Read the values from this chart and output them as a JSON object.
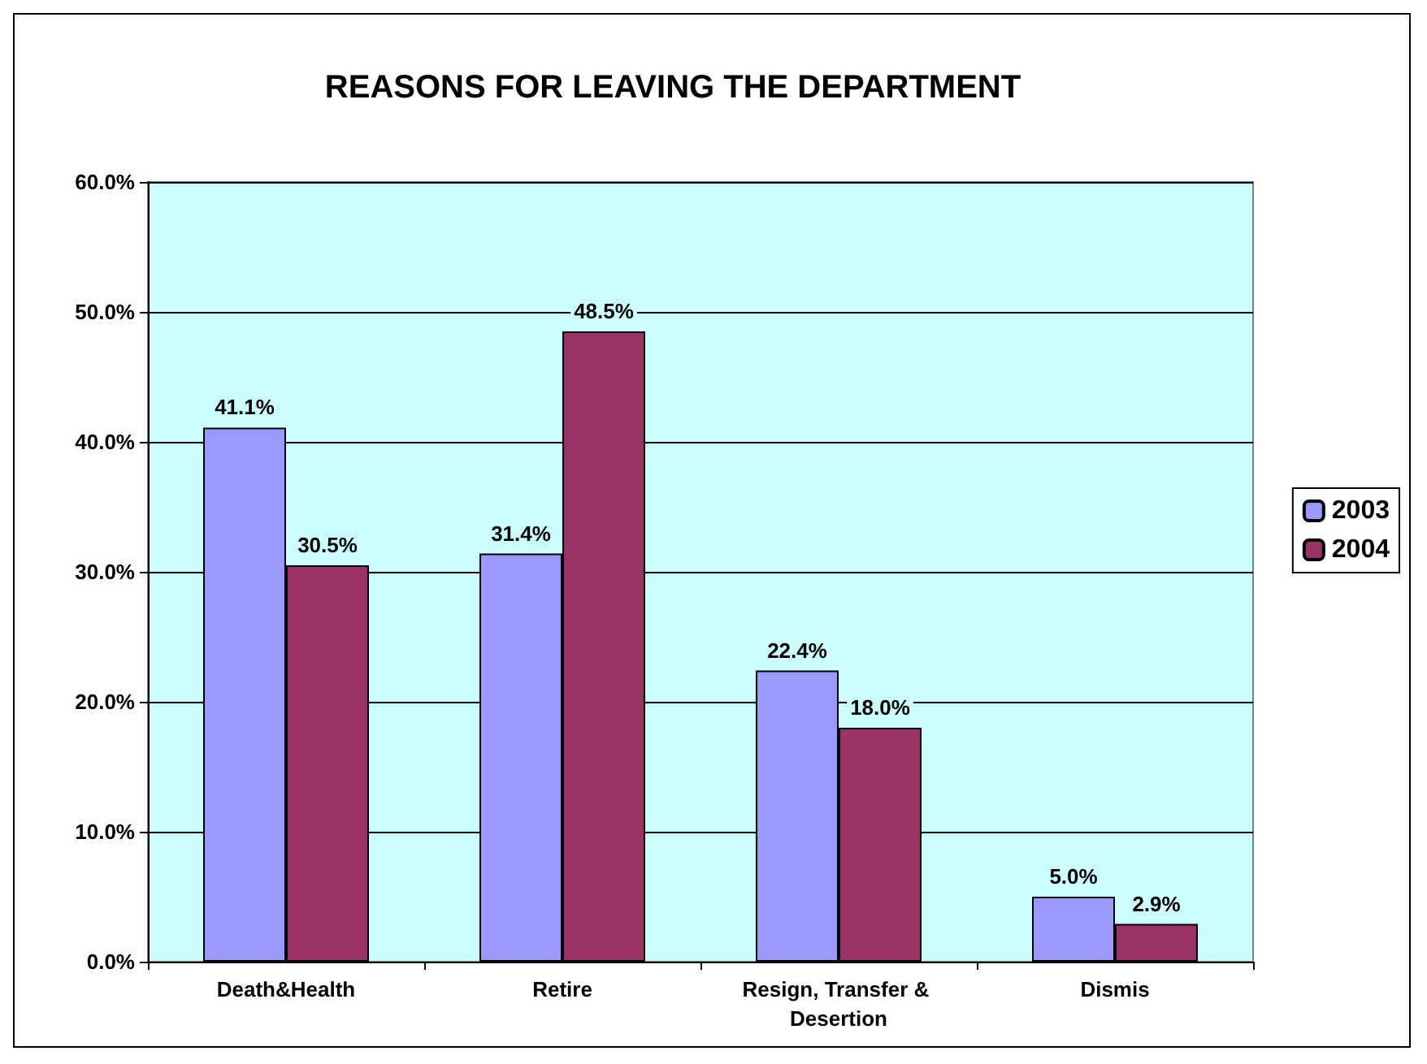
{
  "chart_data": {
    "type": "bar",
    "title": "REASONS FOR LEAVING THE DEPARTMENT",
    "categories": [
      "Death&Health",
      "Retire",
      "Resign, Transfer & Desertion",
      "Dismis"
    ],
    "series": [
      {
        "name": "2003",
        "color": "#9999ff",
        "values": [
          41.1,
          31.4,
          22.4,
          5.0
        ],
        "value_labels": [
          "41.1%",
          "31.4%",
          "22.4%",
          "5.0%"
        ]
      },
      {
        "name": "2004",
        "color": "#993366",
        "values": [
          30.5,
          48.5,
          18.0,
          2.9
        ],
        "value_labels": [
          "30.5%",
          "48.5%",
          "18.0%",
          "2.9%"
        ]
      }
    ],
    "ylim": [
      0,
      60
    ],
    "yticks": [
      {
        "value": 0,
        "label": "0.0%"
      },
      {
        "value": 10,
        "label": "10.0%"
      },
      {
        "value": 20,
        "label": "20.0%"
      },
      {
        "value": 30,
        "label": "30.0%"
      },
      {
        "value": 40,
        "label": "40.0%"
      },
      {
        "value": 50,
        "label": "50.0%"
      },
      {
        "value": 60,
        "label": "60.0%"
      }
    ],
    "grid": "y",
    "legend": "right"
  }
}
